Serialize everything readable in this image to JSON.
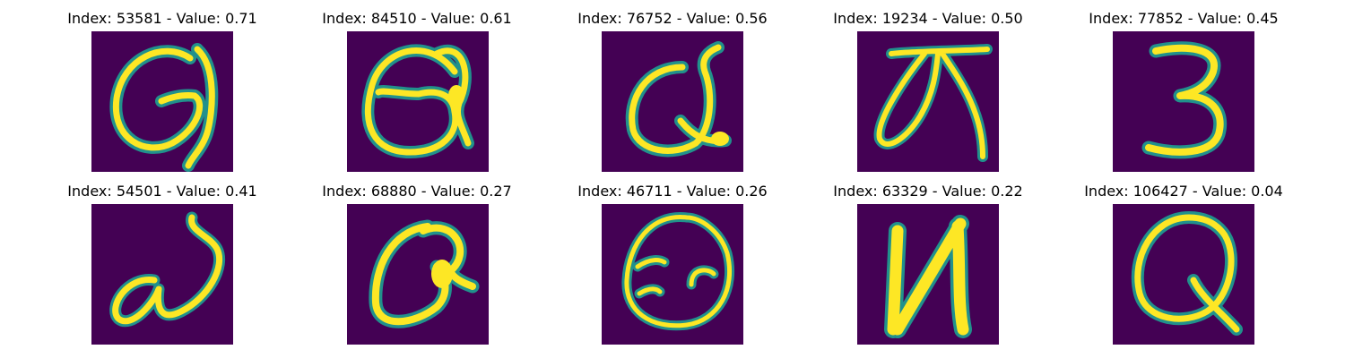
{
  "colors": {
    "background": "#440154",
    "stroke_mid": "#21918c",
    "stroke_hi": "#fde725"
  },
  "panels": [
    {
      "title": "Index: 53581 - Value: 0.71"
    },
    {
      "title": "Index: 84510 - Value: 0.61"
    },
    {
      "title": "Index: 76752 - Value: 0.56"
    },
    {
      "title": "Index: 19234 - Value: 0.50"
    },
    {
      "title": "Index: 77852 - Value: 0.45"
    },
    {
      "title": "Index: 54501 - Value: 0.41"
    },
    {
      "title": "Index: 68880 - Value: 0.27"
    },
    {
      "title": "Index: 46711 - Value: 0.26"
    },
    {
      "title": "Index: 63329 - Value: 0.22"
    },
    {
      "title": "Index: 106427 - Value: 0.04"
    }
  ]
}
